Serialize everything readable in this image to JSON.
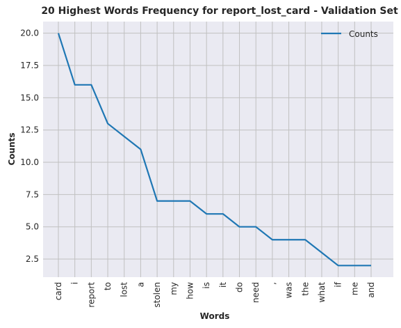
{
  "chart_data": {
    "type": "line",
    "title": "20 Highest Words Frequency for report_lost_card - Validation Set",
    "xlabel": "Words",
    "ylabel": "Counts",
    "categories": [
      "card",
      "i",
      "report",
      "to",
      "lost",
      "a",
      "stolen",
      "my",
      "how",
      "is",
      "it",
      "do",
      "need",
      ",",
      "was",
      "the",
      "what",
      "if",
      "me",
      "and"
    ],
    "series": [
      {
        "name": "Counts",
        "values": [
          20,
          16,
          16,
          13,
          12,
          11,
          7,
          7,
          7,
          6,
          6,
          5,
          5,
          4,
          4,
          4,
          3,
          2,
          2,
          2
        ],
        "color": "#1f77b4"
      }
    ],
    "ylim": [
      1.1,
      20.9
    ],
    "yticks": [
      2.5,
      5.0,
      7.5,
      10.0,
      12.5,
      15.0,
      17.5,
      20.0
    ],
    "ytick_labels": [
      "2.5",
      "5.0",
      "7.5",
      "10.0",
      "12.5",
      "15.0",
      "17.5",
      "20.0"
    ],
    "grid": true,
    "legend_position": "top-right",
    "colors": {
      "background": "#eaeaf2",
      "grid": "#c0c0c0",
      "text": "#262626"
    }
  }
}
